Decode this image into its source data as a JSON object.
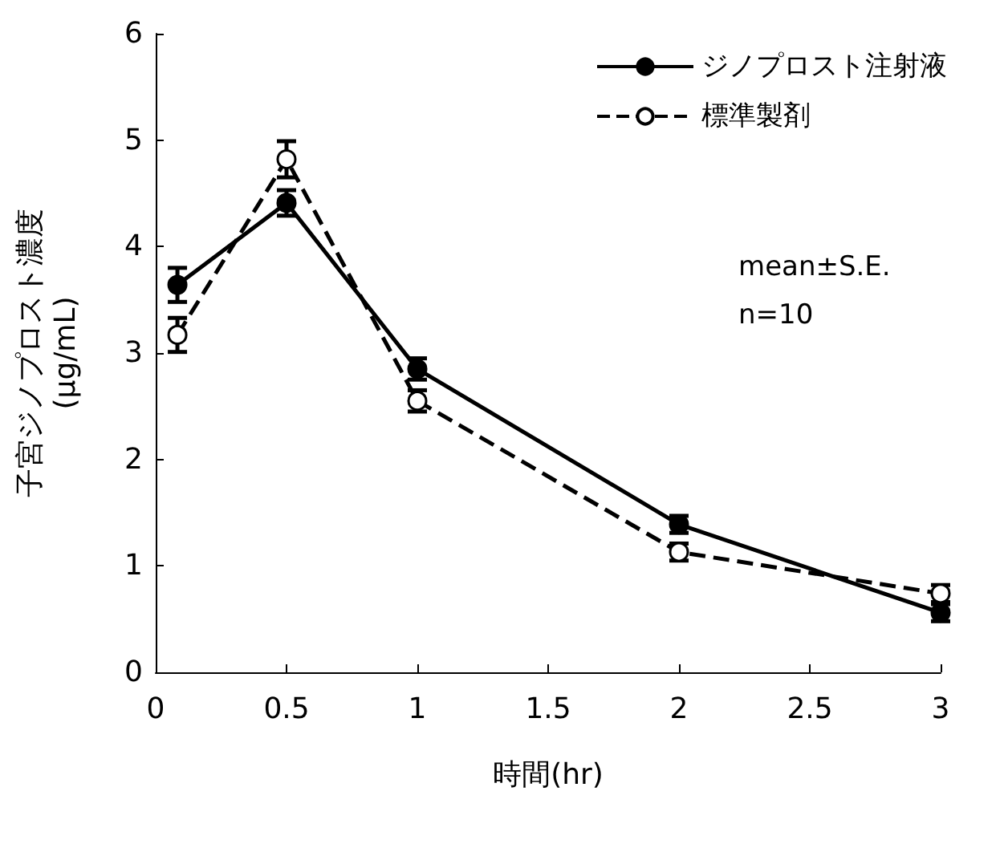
{
  "chart_data": {
    "type": "line",
    "xlabel": "時間(hr)",
    "ylabel": "子宮ジノプロスト濃度\n(μg/mL)",
    "x": [
      0.083,
      0.5,
      1,
      2,
      3
    ],
    "series": [
      {
        "name": "ジノプロスト注射液",
        "color": "#000000",
        "line_style": "solid",
        "values": [
          3.64,
          4.41,
          2.85,
          1.39,
          0.56
        ],
        "errors": [
          0.16,
          0.12,
          0.1,
          0.08,
          0.08
        ]
      },
      {
        "name": "標準製剤",
        "color": "#000000",
        "line_style": "dashed",
        "values": [
          3.17,
          4.82,
          2.55,
          1.13,
          0.74
        ],
        "errors": [
          0.16,
          0.17,
          0.1,
          0.08,
          0.08
        ]
      }
    ],
    "xlim": [
      0,
      3
    ],
    "xticks": [
      0,
      0.5,
      1,
      1.5,
      2,
      2.5,
      3
    ],
    "ylim": [
      0,
      6
    ],
    "yticks": [
      0,
      1,
      2,
      3,
      4,
      5,
      6
    ],
    "marker": "circle",
    "grid": false,
    "legend": "top right",
    "annotations": [
      "mean±S.E.",
      "n=10"
    ]
  }
}
